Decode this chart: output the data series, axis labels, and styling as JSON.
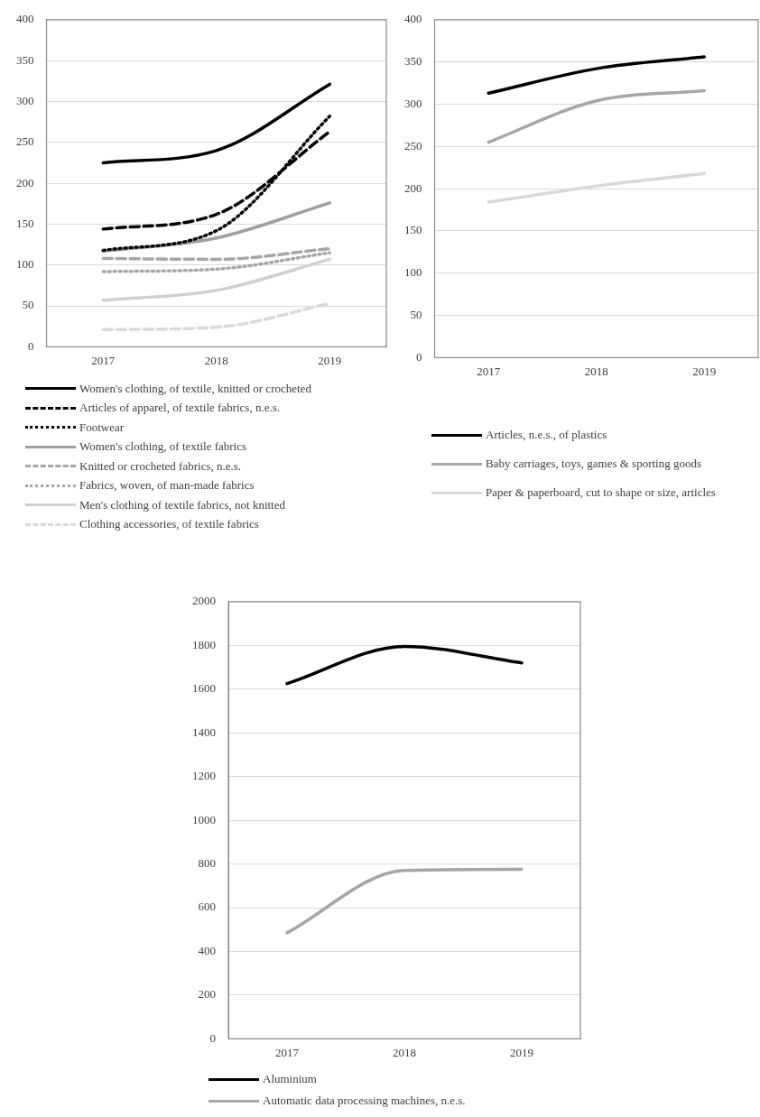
{
  "chart_data": [
    {
      "type": "line",
      "categories": [
        "2017",
        "2018",
        "2019"
      ],
      "ylim": [
        0,
        400
      ],
      "yticks": [
        0,
        50,
        100,
        150,
        200,
        250,
        300,
        350,
        400
      ],
      "grid": "y",
      "legend": "bottom",
      "marker": "none",
      "series": [
        {
          "name": "Women's clothing, of textile, knitted or crocheted",
          "color": "#000000",
          "line_style": "solid",
          "values": [
            225,
            240,
            321
          ]
        },
        {
          "name": "Articles of apparel, of textile fabrics, n.e.s.",
          "color": "#000000",
          "line_style": "dashed",
          "values": [
            144,
            162,
            263
          ]
        },
        {
          "name": "Footwear",
          "color": "#000000",
          "line_style": "dotted",
          "values": [
            118,
            142,
            282
          ]
        },
        {
          "name": "Women's clothing, of textile fabrics",
          "color": "#a0a0a0",
          "line_style": "solid",
          "values": [
            117,
            133,
            176
          ]
        },
        {
          "name": "Knitted or crocheted fabrics, n.e.s.",
          "color": "#a6a6a6",
          "line_style": "dashed",
          "values": [
            108,
            107,
            120
          ]
        },
        {
          "name": "Fabrics, woven, of man-made fabrics",
          "color": "#a6a6a6",
          "line_style": "dotted",
          "values": [
            92,
            95,
            115
          ]
        },
        {
          "name": "Men's clothing of textile fabrics, not knitted",
          "color": "#d0d0d0",
          "line_style": "solid",
          "values": [
            57,
            69,
            107
          ]
        },
        {
          "name": "Clothing accessories, of textile fabrics",
          "color": "#d9d9d9",
          "line_style": "dashed",
          "values": [
            21,
            24,
            53
          ]
        }
      ]
    },
    {
      "type": "line",
      "categories": [
        "2017",
        "2018",
        "2019"
      ],
      "ylim": [
        0,
        400
      ],
      "yticks": [
        0,
        50,
        100,
        150,
        200,
        250,
        300,
        350,
        400
      ],
      "grid": "y",
      "legend": "bottom",
      "marker": "none",
      "series": [
        {
          "name": "Articles, n.e.s., of plastics",
          "color": "#000000",
          "line_style": "solid",
          "values": [
            313,
            342,
            356
          ]
        },
        {
          "name": "Baby carriages, toys, games & sporting goods",
          "color": "#a6a6a6",
          "line_style": "solid",
          "values": [
            255,
            304,
            316
          ]
        },
        {
          "name": "Paper & paperboard, cut to shape or size, articles",
          "color": "#d9d9d9",
          "line_style": "solid",
          "values": [
            184,
            203,
            218
          ]
        }
      ]
    },
    {
      "type": "line",
      "categories": [
        "2017",
        "2018",
        "2019"
      ],
      "ylim": [
        0,
        2000
      ],
      "yticks": [
        0,
        200,
        400,
        600,
        800,
        1000,
        1200,
        1400,
        1600,
        1800,
        2000
      ],
      "grid": "y",
      "legend": "bottom",
      "marker": "none",
      "series": [
        {
          "name": "Aluminium",
          "color": "#000000",
          "line_style": "solid",
          "values": [
            1625,
            1795,
            1720
          ]
        },
        {
          "name": "Automatic data processing machines, n.e.s.",
          "color": "#a6a6a6",
          "line_style": "solid",
          "values": [
            485,
            770,
            775
          ]
        }
      ]
    }
  ]
}
